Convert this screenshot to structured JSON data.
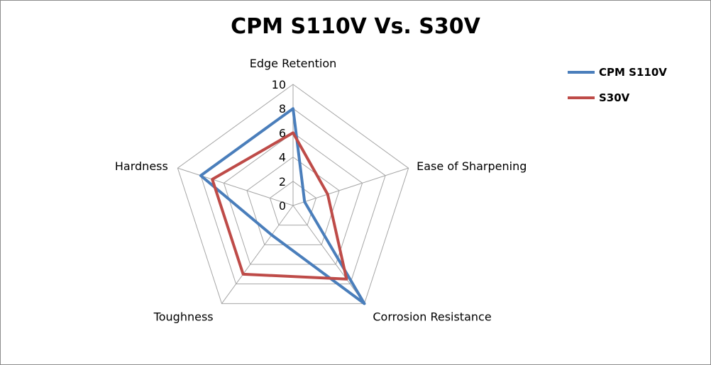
{
  "chart_data": {
    "type": "radar",
    "title": "CPM S110V Vs. S30V",
    "categories": [
      "Edge Retention",
      "Ease of Sharpening",
      "Corrosion Resistance",
      "Toughness",
      "Hardness"
    ],
    "rlim": [
      0,
      10
    ],
    "rticks": [
      0,
      2,
      4,
      6,
      8,
      10
    ],
    "grid": true,
    "legend_position": "top-right",
    "series": [
      {
        "name": "CPM S110V",
        "color": "#4a7ebb",
        "values": [
          8,
          1,
          10,
          3,
          8
        ]
      },
      {
        "name": "S30V",
        "color": "#be4b48",
        "values": [
          6,
          3,
          7.5,
          7,
          7
        ]
      }
    ]
  }
}
